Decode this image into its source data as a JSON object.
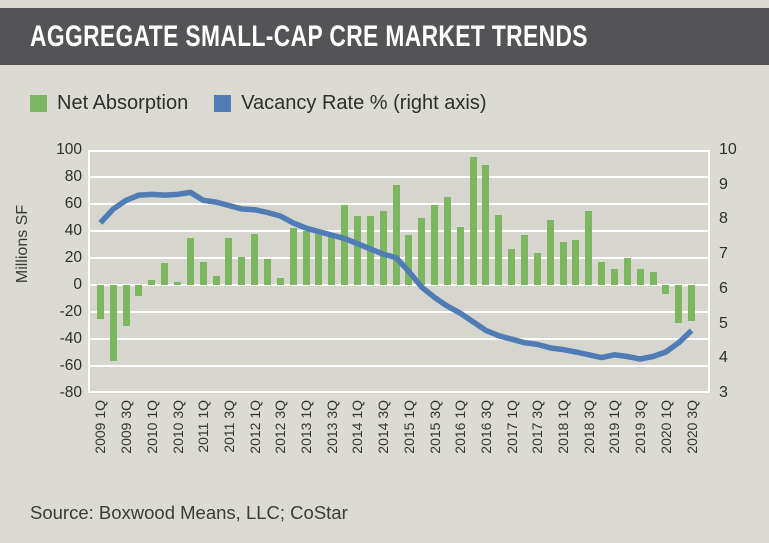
{
  "header": {
    "title": "AGGREGATE SMALL-CAP CRE MARKET TRENDS"
  },
  "legend": {
    "items": [
      {
        "label": "Net Absorption",
        "color": "#7cb65f"
      },
      {
        "label": "Vacancy Rate % (right axis)",
        "color": "#4f7cb5"
      }
    ]
  },
  "source": "Source: Boxwood Means, LLC; CoStar",
  "chart_data": {
    "type": "bar",
    "title": "AGGREGATE SMALL-CAP CRE MARKET TRENDS",
    "categories": [
      "2009 1Q",
      "2009 2Q",
      "2009 3Q",
      "2009 4Q",
      "2010 1Q",
      "2010 2Q",
      "2010 3Q",
      "2010 4Q",
      "2011 1Q",
      "2011 2Q",
      "2011 3Q",
      "2011 4Q",
      "2012 1Q",
      "2012 2Q",
      "2012 3Q",
      "2012 4Q",
      "2013 1Q",
      "2013 2Q",
      "2013 3Q",
      "2013 4Q",
      "2014 1Q",
      "2014 2Q",
      "2014 3Q",
      "2014 4Q",
      "2015 1Q",
      "2015 2Q",
      "2015 3Q",
      "2015 4Q",
      "2016 1Q",
      "2016 2Q",
      "2016 3Q",
      "2016 4Q",
      "2017 1Q",
      "2017 2Q",
      "2017 3Q",
      "2017 4Q",
      "2018 1Q",
      "2018 2Q",
      "2018 3Q",
      "2018 4Q",
      "2019 1Q",
      "2019 2Q",
      "2019 3Q",
      "2019 4Q",
      "2020 1Q",
      "2020 2Q",
      "2020 3Q"
    ],
    "x_tick_labels": [
      "2009 1Q",
      "2009 3Q",
      "2010 1Q",
      "2010 3Q",
      "2011 1Q",
      "2011 3Q",
      "2012 1Q",
      "2012 3Q",
      "2013 1Q",
      "2013 3Q",
      "2014 1Q",
      "2014 3Q",
      "2015 1Q",
      "2015 3Q",
      "2016 1Q",
      "2016 3Q",
      "2017 1Q",
      "2017 3Q",
      "2018 1Q",
      "2018 3Q",
      "2019 1Q",
      "2019 3Q",
      "2020 1Q",
      "2020 3Q"
    ],
    "series": [
      {
        "name": "Net Absorption",
        "type": "bar",
        "axis": "left",
        "color": "#7cb65f",
        "values": [
          -25,
          -56,
          -30,
          -8,
          4,
          16,
          2,
          35,
          17,
          7,
          35,
          21,
          38,
          19,
          5,
          42,
          40,
          39,
          38,
          59,
          51,
          51,
          55,
          74,
          37,
          50,
          59,
          65,
          43,
          95,
          89,
          52,
          27,
          37,
          24,
          48,
          32,
          33,
          55,
          17,
          12,
          20,
          12,
          10,
          -7,
          -28,
          -27
        ]
      },
      {
        "name": "Vacancy Rate % (right axis)",
        "type": "line",
        "axis": "right",
        "color": "#4f7cb5",
        "values": [
          7.9,
          8.3,
          8.55,
          8.7,
          8.72,
          8.7,
          8.72,
          8.78,
          8.55,
          8.5,
          8.4,
          8.3,
          8.28,
          8.2,
          8.1,
          7.9,
          7.75,
          7.65,
          7.55,
          7.45,
          7.3,
          7.15,
          7.0,
          6.9,
          6.5,
          6.05,
          5.75,
          5.5,
          5.3,
          5.05,
          4.8,
          4.65,
          4.55,
          4.45,
          4.4,
          4.3,
          4.25,
          4.18,
          4.1,
          4.02,
          4.1,
          4.05,
          3.98,
          4.05,
          4.18,
          4.45,
          4.8
        ]
      }
    ],
    "left_axis": {
      "label": "Millions SF",
      "min": -80,
      "max": 100,
      "ticks": [
        100,
        80,
        60,
        40,
        20,
        0,
        -20,
        -40,
        -60,
        -80
      ]
    },
    "right_axis": {
      "label": "Vacancy Rate %",
      "min": 3,
      "max": 10,
      "ticks": [
        10,
        9,
        8,
        7,
        6,
        5,
        4,
        3
      ]
    },
    "grid": true,
    "gridline_color": "#ffffff",
    "plot_bg": "#d6d6ce",
    "page_bg": "#dbdbd3",
    "legend_position": "top"
  }
}
